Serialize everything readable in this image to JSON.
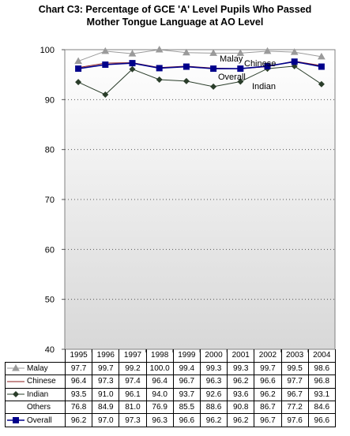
{
  "chart_data": {
    "type": "line",
    "title_line1": "Chart C3: Percentage of GCE 'A' Level Pupils Who Passed",
    "title_line2": "Mother Tongue Language at AO Level",
    "xlabel": "",
    "ylabel": "",
    "ylim": [
      40,
      100
    ],
    "yticks": [
      40,
      50,
      60,
      70,
      80,
      90,
      100
    ],
    "grid": "horizontal dotted",
    "categories": [
      "1995",
      "1996",
      "1997",
      "1998",
      "1999",
      "2000",
      "2001",
      "2002",
      "2003",
      "2004"
    ],
    "series": [
      {
        "name": "Malay",
        "values": [
          97.7,
          99.7,
          99.2,
          100.0,
          99.4,
          99.3,
          99.3,
          99.7,
          99.5,
          98.6
        ],
        "color": "#9a9a9a",
        "marker": "triangle",
        "plotted": true
      },
      {
        "name": "Chinese",
        "values": [
          96.4,
          97.3,
          97.4,
          96.4,
          96.7,
          96.3,
          96.2,
          96.6,
          97.7,
          96.8
        ],
        "color": "#8b1a1a",
        "marker": "none",
        "plotted": true
      },
      {
        "name": "Indian",
        "values": [
          93.5,
          91.0,
          96.1,
          94.0,
          93.7,
          92.6,
          93.6,
          96.2,
          96.7,
          93.1
        ],
        "color": "#2a3d2a",
        "marker": "diamond",
        "plotted": true
      },
      {
        "name": "Others",
        "values": [
          76.8,
          84.9,
          81.0,
          76.9,
          85.5,
          88.6,
          90.8,
          86.7,
          77.2,
          84.6
        ],
        "color": "#000000",
        "marker": "none",
        "plotted": false
      },
      {
        "name": "Overall",
        "values": [
          96.2,
          97.0,
          97.3,
          96.3,
          96.6,
          96.2,
          96.2,
          96.7,
          97.6,
          96.6
        ],
        "color": "#00008b",
        "marker": "square",
        "plotted": true
      }
    ],
    "annotations": [
      "Malay",
      "Chinese",
      "Overall",
      "Indian"
    ]
  }
}
